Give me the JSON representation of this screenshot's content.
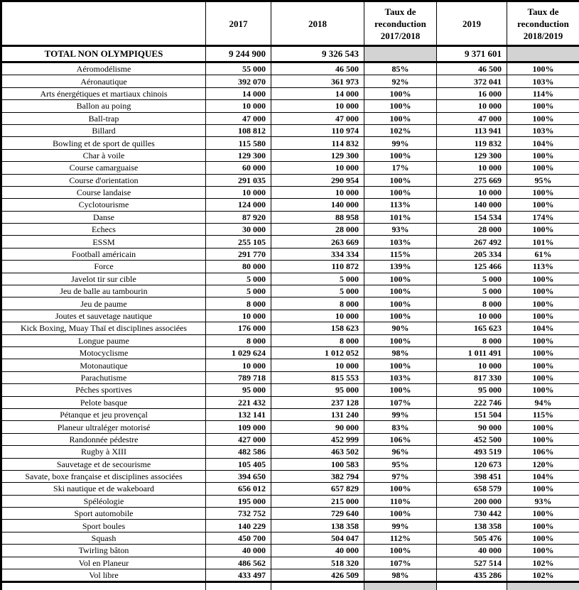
{
  "header": {
    "labels": [
      "",
      "2017",
      "2018",
      "Taux de reconduction 2017/2018",
      "2019",
      "Taux de reconduction 2018/2019"
    ]
  },
  "total_row": {
    "label": "TOTAL NON OLYMPIQUES",
    "y2017": "9 244 900",
    "y2018": "9 326 543",
    "taux_2017_2018": "",
    "y2019": "9 371 601",
    "taux_2018_2019": ""
  },
  "rows": [
    {
      "label": "Aéromodélisme",
      "y2017": "55 000",
      "y2018": "46 500",
      "taux_2017_2018": "85%",
      "y2019": "46 500",
      "taux_2018_2019": "100%"
    },
    {
      "label": "Aéronautique",
      "y2017": "392 070",
      "y2018": "361 973",
      "taux_2017_2018": "92%",
      "y2019": "372 041",
      "taux_2018_2019": "103%"
    },
    {
      "label": "Arts énergétiques et martiaux chinois",
      "y2017": "14 000",
      "y2018": "14 000",
      "taux_2017_2018": "100%",
      "y2019": "16 000",
      "taux_2018_2019": "114%"
    },
    {
      "label": "Ballon au poing",
      "y2017": "10 000",
      "y2018": "10 000",
      "taux_2017_2018": "100%",
      "y2019": "10 000",
      "taux_2018_2019": "100%"
    },
    {
      "label": "Ball-trap",
      "y2017": "47 000",
      "y2018": "47 000",
      "taux_2017_2018": "100%",
      "y2019": "47 000",
      "taux_2018_2019": "100%"
    },
    {
      "label": "Billard",
      "y2017": "108 812",
      "y2018": "110 974",
      "taux_2017_2018": "102%",
      "y2019": "113 941",
      "taux_2018_2019": "103%"
    },
    {
      "label": "Bowling et de sport de quilles",
      "y2017": "115 580",
      "y2018": "114 832",
      "taux_2017_2018": "99%",
      "y2019": "119 832",
      "taux_2018_2019": "104%"
    },
    {
      "label": "Char à voile",
      "y2017": "129 300",
      "y2018": "129 300",
      "taux_2017_2018": "100%",
      "y2019": "129 300",
      "taux_2018_2019": "100%"
    },
    {
      "label": "Course camarguaise",
      "y2017": "60 000",
      "y2018": "10 000",
      "taux_2017_2018": "17%",
      "y2019": "10 000",
      "taux_2018_2019": "100%"
    },
    {
      "label": "Course d'orientation",
      "y2017": "291 035",
      "y2018": "290 954",
      "taux_2017_2018": "100%",
      "y2019": "275 669",
      "taux_2018_2019": "95%"
    },
    {
      "label": "Course landaise",
      "y2017": "10 000",
      "y2018": "10 000",
      "taux_2017_2018": "100%",
      "y2019": "10 000",
      "taux_2018_2019": "100%"
    },
    {
      "label": "Cyclotourisme",
      "y2017": "124 000",
      "y2018": "140 000",
      "taux_2017_2018": "113%",
      "y2019": "140 000",
      "taux_2018_2019": "100%"
    },
    {
      "label": "Danse",
      "y2017": "87 920",
      "y2018": "88 958",
      "taux_2017_2018": "101%",
      "y2019": "154 534",
      "taux_2018_2019": "174%"
    },
    {
      "label": "Echecs",
      "y2017": "30 000",
      "y2018": "28 000",
      "taux_2017_2018": "93%",
      "y2019": "28 000",
      "taux_2018_2019": "100%"
    },
    {
      "label": "ESSM",
      "y2017": "255 105",
      "y2018": "263 669",
      "taux_2017_2018": "103%",
      "y2019": "267 492",
      "taux_2018_2019": "101%"
    },
    {
      "label": "Football américain",
      "y2017": "291 770",
      "y2018": "334 334",
      "taux_2017_2018": "115%",
      "y2019": "205 334",
      "taux_2018_2019": "61%"
    },
    {
      "label": "Force",
      "y2017": "80 000",
      "y2018": "110 872",
      "taux_2017_2018": "139%",
      "y2019": "125 466",
      "taux_2018_2019": "113%"
    },
    {
      "label": "Javelot tir sur cible",
      "y2017": "5 000",
      "y2018": "5 000",
      "taux_2017_2018": "100%",
      "y2019": "5 000",
      "taux_2018_2019": "100%"
    },
    {
      "label": "Jeu de balle au tambourin",
      "y2017": "5 000",
      "y2018": "5 000",
      "taux_2017_2018": "100%",
      "y2019": "5 000",
      "taux_2018_2019": "100%"
    },
    {
      "label": "Jeu de paume",
      "y2017": "8 000",
      "y2018": "8 000",
      "taux_2017_2018": "100%",
      "y2019": "8 000",
      "taux_2018_2019": "100%"
    },
    {
      "label": "Joutes et sauvetage nautique",
      "y2017": "10 000",
      "y2018": "10 000",
      "taux_2017_2018": "100%",
      "y2019": "10 000",
      "taux_2018_2019": "100%"
    },
    {
      "label": "Kick Boxing, Muay Thaï et disciplines associées",
      "y2017": "176 000",
      "y2018": "158 623",
      "taux_2017_2018": "90%",
      "y2019": "165 623",
      "taux_2018_2019": "104%"
    },
    {
      "label": "Longue paume",
      "y2017": "8 000",
      "y2018": "8 000",
      "taux_2017_2018": "100%",
      "y2019": "8 000",
      "taux_2018_2019": "100%"
    },
    {
      "label": "Motocyclisme",
      "y2017": "1 029 624",
      "y2018": "1 012 052",
      "taux_2017_2018": "98%",
      "y2019": "1 011 491",
      "taux_2018_2019": "100%"
    },
    {
      "label": "Motonautique",
      "y2017": "10 000",
      "y2018": "10 000",
      "taux_2017_2018": "100%",
      "y2019": "10 000",
      "taux_2018_2019": "100%"
    },
    {
      "label": "Parachutisme",
      "y2017": "789 718",
      "y2018": "815 553",
      "taux_2017_2018": "103%",
      "y2019": "817 330",
      "taux_2018_2019": "100%"
    },
    {
      "label": "Pêches sportives",
      "y2017": "95 000",
      "y2018": "95 000",
      "taux_2017_2018": "100%",
      "y2019": "95 000",
      "taux_2018_2019": "100%"
    },
    {
      "label": "Pelote basque",
      "y2017": "221 432",
      "y2018": "237 128",
      "taux_2017_2018": "107%",
      "y2019": "222 746",
      "taux_2018_2019": "94%"
    },
    {
      "label": "Pétanque et jeu provençal",
      "y2017": "132 141",
      "y2018": "131 240",
      "taux_2017_2018": "99%",
      "y2019": "151 504",
      "taux_2018_2019": "115%"
    },
    {
      "label": "Planeur ultraléger motorisé",
      "y2017": "109 000",
      "y2018": "90 000",
      "taux_2017_2018": "83%",
      "y2019": "90 000",
      "taux_2018_2019": "100%"
    },
    {
      "label": "Randonnée pédestre",
      "y2017": "427 000",
      "y2018": "452 999",
      "taux_2017_2018": "106%",
      "y2019": "452 500",
      "taux_2018_2019": "100%"
    },
    {
      "label": "Rugby à XIII",
      "y2017": "482 586",
      "y2018": "463 502",
      "taux_2017_2018": "96%",
      "y2019": "493 519",
      "taux_2018_2019": "106%"
    },
    {
      "label": "Sauvetage et de secourisme",
      "y2017": "105 405",
      "y2018": "100 583",
      "taux_2017_2018": "95%",
      "y2019": "120 673",
      "taux_2018_2019": "120%"
    },
    {
      "label": "Savate, boxe française et disciplines associées",
      "y2017": "394 650",
      "y2018": "382 794",
      "taux_2017_2018": "97%",
      "y2019": "398 451",
      "taux_2018_2019": "104%"
    },
    {
      "label": "Ski nautique et de wakeboard",
      "y2017": "656 012",
      "y2018": "657 829",
      "taux_2017_2018": "100%",
      "y2019": "658 579",
      "taux_2018_2019": "100%"
    },
    {
      "label": "Spéléologie",
      "y2017": "195 000",
      "y2018": "215 000",
      "taux_2017_2018": "110%",
      "y2019": "200 000",
      "taux_2018_2019": "93%"
    },
    {
      "label": "Sport automobile",
      "y2017": "732 752",
      "y2018": "729 640",
      "taux_2017_2018": "100%",
      "y2019": "730 442",
      "taux_2018_2019": "100%"
    },
    {
      "label": "Sport boules",
      "y2017": "140 229",
      "y2018": "138 358",
      "taux_2017_2018": "99%",
      "y2019": "138 358",
      "taux_2018_2019": "100%"
    },
    {
      "label": "Squash",
      "y2017": "450 700",
      "y2018": "504 047",
      "taux_2017_2018": "112%",
      "y2019": "505 476",
      "taux_2018_2019": "100%"
    },
    {
      "label": "Twirling bâton",
      "y2017": "40 000",
      "y2018": "40 000",
      "taux_2017_2018": "100%",
      "y2019": "40 000",
      "taux_2018_2019": "100%"
    },
    {
      "label": "Vol en Planeur",
      "y2017": "486 562",
      "y2018": "518 320",
      "taux_2017_2018": "107%",
      "y2019": "527 514",
      "taux_2018_2019": "102%"
    },
    {
      "label": "Vol libre",
      "y2017": "433 497",
      "y2018": "426 509",
      "taux_2017_2018": "98%",
      "y2019": "435 286",
      "taux_2018_2019": "102%"
    }
  ],
  "colors": {
    "highlight_gray": "#d3d3d3",
    "border": "#000000",
    "background": "#ffffff"
  }
}
